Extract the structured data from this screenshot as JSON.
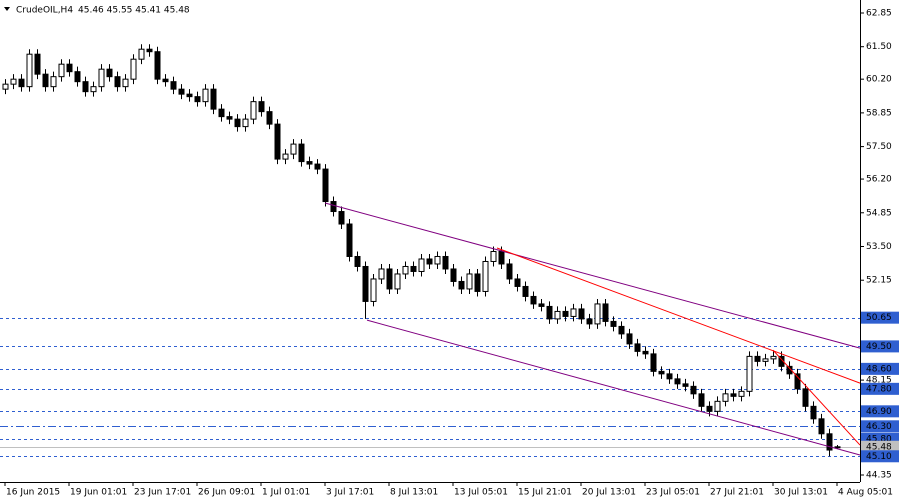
{
  "chart_data": {
    "type": "candlestick",
    "title": "CrudeOIL,H4",
    "subtitle": "45.46 45.55 45.41 45.48",
    "categories": [
      "16 Jun 2015",
      null,
      null,
      null,
      null,
      null,
      null,
      null,
      "19 Jun 01:01",
      null,
      null,
      null,
      null,
      null,
      null,
      null,
      "23 Jun 17:01",
      null,
      null,
      null,
      null,
      null,
      null,
      null,
      "26 Jun 09:01",
      null,
      null,
      null,
      null,
      null,
      null,
      null,
      "1 Jul 01:01",
      null,
      null,
      null,
      null,
      null,
      null,
      null,
      "3 Jul 17:01",
      null,
      null,
      null,
      null,
      null,
      null,
      null,
      "8 Jul 13:01",
      null,
      null,
      null,
      null,
      null,
      null,
      null,
      "13 Jul 05:01",
      null,
      null,
      null,
      null,
      null,
      null,
      null,
      "15 Jul 21:01",
      null,
      null,
      null,
      null,
      null,
      null,
      null,
      "20 Jul 13:01",
      null,
      null,
      null,
      null,
      null,
      null,
      null,
      "23 Jul 05:01",
      null,
      null,
      null,
      null,
      null,
      null,
      null,
      "27 Jul 21:01",
      null,
      null,
      null,
      null,
      null,
      null,
      null,
      "30 Jul 13:01",
      null,
      null,
      null,
      null,
      null,
      null,
      null,
      "4 Aug 05:01"
    ],
    "open": [
      59.8,
      60.0,
      60.2,
      59.9,
      61.2,
      60.4,
      59.9,
      60.3,
      60.8,
      60.5,
      60.1,
      59.7,
      59.9,
      60.6,
      60.3,
      59.9,
      60.2,
      61.0,
      61.4,
      61.3,
      60.2,
      60.1,
      59.8,
      59.6,
      59.5,
      59.3,
      59.8,
      59.0,
      58.7,
      58.6,
      58.3,
      58.6,
      59.3,
      58.9,
      58.4,
      57.0,
      57.2,
      57.6,
      56.9,
      56.8,
      56.6,
      55.3,
      54.9,
      54.4,
      53.1,
      52.7,
      51.3,
      52.2,
      52.6,
      51.8,
      52.4,
      52.7,
      52.5,
      53.0,
      52.8,
      53.1,
      52.6,
      52.1,
      51.8,
      52.4,
      51.7,
      52.9,
      53.3,
      52.8,
      52.2,
      51.9,
      51.5,
      51.2,
      51.1,
      50.6,
      50.9,
      50.7,
      51.0,
      50.6,
      50.4,
      51.2,
      50.5,
      50.3,
      50.0,
      49.6,
      49.3,
      49.2,
      48.5,
      48.4,
      48.2,
      48.0,
      47.9,
      47.6,
      47.1,
      46.9,
      47.3,
      47.6,
      47.5,
      47.7,
      49.1,
      48.9,
      49.0,
      49.1,
      48.7,
      48.4,
      47.8,
      47.1,
      46.6,
      46.0,
      45.46
    ],
    "high": [
      60.2,
      60.4,
      60.4,
      61.4,
      61.4,
      60.6,
      60.5,
      61.0,
      61.0,
      60.7,
      60.3,
      60.1,
      60.8,
      60.8,
      60.5,
      60.4,
      61.2,
      61.6,
      61.6,
      61.5,
      60.4,
      60.3,
      60.0,
      59.8,
      59.7,
      60.0,
      60.0,
      59.2,
      58.9,
      58.8,
      58.8,
      59.5,
      59.5,
      59.1,
      58.6,
      57.4,
      57.8,
      57.8,
      57.1,
      57.0,
      56.8,
      55.5,
      55.1,
      54.6,
      53.3,
      52.9,
      52.4,
      52.8,
      52.8,
      52.6,
      52.9,
      52.9,
      53.2,
      53.2,
      53.3,
      53.3,
      52.8,
      52.3,
      52.6,
      52.6,
      53.1,
      53.5,
      53.5,
      53.0,
      52.4,
      52.1,
      51.7,
      51.4,
      51.3,
      51.1,
      51.1,
      51.2,
      51.2,
      50.8,
      51.4,
      51.4,
      50.7,
      50.5,
      50.2,
      49.8,
      49.5,
      49.4,
      48.7,
      48.6,
      48.4,
      48.2,
      48.1,
      47.8,
      47.3,
      47.5,
      47.8,
      47.8,
      47.9,
      49.3,
      49.3,
      49.2,
      49.3,
      49.3,
      48.9,
      48.6,
      48.0,
      47.3,
      46.8,
      46.2,
      45.55
    ],
    "low": [
      59.6,
      59.8,
      59.7,
      59.7,
      60.2,
      59.7,
      59.7,
      60.1,
      60.3,
      59.9,
      59.5,
      59.5,
      59.7,
      60.1,
      59.7,
      59.7,
      60.0,
      60.8,
      61.1,
      60.0,
      59.9,
      59.6,
      59.4,
      59.3,
      59.1,
      59.1,
      58.8,
      58.5,
      58.4,
      58.1,
      58.1,
      58.4,
      58.7,
      58.2,
      56.8,
      56.8,
      57.0,
      56.7,
      56.6,
      56.4,
      55.1,
      54.7,
      54.2,
      52.9,
      52.5,
      50.6,
      51.1,
      52.0,
      51.6,
      51.6,
      52.2,
      52.3,
      52.3,
      52.6,
      52.6,
      52.4,
      51.9,
      51.6,
      51.6,
      51.5,
      51.5,
      52.7,
      52.6,
      52.0,
      51.7,
      51.3,
      51.0,
      50.9,
      50.4,
      50.4,
      50.5,
      50.5,
      50.4,
      50.2,
      50.2,
      50.3,
      50.1,
      49.8,
      49.4,
      49.1,
      49.0,
      48.3,
      48.2,
      48.0,
      47.8,
      47.7,
      47.4,
      46.9,
      46.7,
      46.7,
      47.1,
      47.3,
      47.3,
      47.5,
      48.7,
      48.7,
      48.8,
      48.5,
      48.2,
      47.6,
      46.9,
      46.4,
      45.8,
      45.1,
      45.41
    ],
    "close": [
      60.0,
      60.2,
      59.9,
      61.2,
      60.4,
      59.9,
      60.3,
      60.8,
      60.5,
      60.1,
      59.7,
      59.9,
      60.6,
      60.3,
      59.9,
      60.2,
      61.0,
      61.4,
      61.3,
      60.2,
      60.1,
      59.8,
      59.6,
      59.5,
      59.3,
      59.8,
      59.0,
      58.7,
      58.6,
      58.3,
      58.6,
      59.3,
      58.9,
      58.4,
      57.0,
      57.2,
      57.6,
      56.9,
      56.8,
      56.6,
      55.3,
      54.9,
      54.4,
      53.1,
      52.7,
      51.3,
      52.2,
      52.6,
      51.8,
      52.4,
      52.7,
      52.5,
      53.0,
      52.8,
      53.1,
      52.6,
      52.1,
      51.8,
      52.4,
      51.7,
      52.9,
      53.3,
      52.8,
      52.2,
      51.9,
      51.5,
      51.2,
      51.1,
      50.6,
      50.9,
      50.7,
      51.0,
      50.6,
      50.4,
      51.2,
      50.5,
      50.3,
      50.0,
      49.6,
      49.3,
      49.2,
      48.5,
      48.4,
      48.2,
      48.0,
      47.9,
      47.6,
      47.1,
      46.9,
      47.3,
      47.6,
      47.5,
      47.7,
      49.1,
      48.9,
      49.0,
      49.1,
      48.7,
      48.4,
      47.8,
      47.1,
      46.6,
      46.0,
      45.35,
      45.48
    ],
    "xlim": [
      -0.625,
      106.875
    ],
    "ylim": [
      44.07,
      63.37
    ],
    "yticks": [
      {
        "value": 62.85,
        "label": "62.85"
      },
      {
        "value": 61.5,
        "label": "61.50"
      },
      {
        "value": 60.2,
        "label": "60.20"
      },
      {
        "value": 58.85,
        "label": "58.85"
      },
      {
        "value": 57.5,
        "label": "57.50"
      },
      {
        "value": 56.2,
        "label": "56.20"
      },
      {
        "value": 54.85,
        "label": "54.85"
      },
      {
        "value": 53.5,
        "label": "53.50"
      },
      {
        "value": 52.15,
        "label": "52.15"
      },
      {
        "value": 48.15,
        "label": "48.15"
      },
      {
        "value": 44.35,
        "label": "44.35"
      }
    ],
    "levels": [
      {
        "value": 50.65,
        "label": "50.65",
        "color": "#2f5fd0",
        "style": "dash"
      },
      {
        "value": 49.5,
        "label": "49.50",
        "color": "#2f5fd0",
        "style": "dash"
      },
      {
        "value": 48.6,
        "label": "48.60",
        "color": "#2f5fd0",
        "style": "dash"
      },
      {
        "value": 47.8,
        "label": "47.80",
        "color": "#2f5fd0",
        "style": "dash"
      },
      {
        "value": 46.9,
        "label": "46.90",
        "color": "#2f5fd0",
        "style": "dash"
      },
      {
        "value": 46.3,
        "label": "46.30",
        "color": "#2f5fd0",
        "style": "dashdot"
      },
      {
        "value": 45.8,
        "label": "45.80",
        "color": "#2f5fd0",
        "style": "dash"
      },
      {
        "value": 45.48,
        "label": "45.48",
        "color": "#c0c0c0",
        "style": "solid"
      },
      {
        "value": 45.1,
        "label": "45.10",
        "color": "#2f5fd0",
        "style": "dash"
      }
    ],
    "trendlines": [
      {
        "color": "#800080",
        "x": [
          40,
          106.875
        ],
        "y": [
          55.24,
          49.43
        ]
      },
      {
        "color": "#800080",
        "x": [
          45.25,
          106.875
        ],
        "y": [
          50.55,
          45.15
        ]
      },
      {
        "color": "#ff0000",
        "x": [
          61.5,
          106.875
        ],
        "y": [
          53.44,
          48.03
        ]
      },
      {
        "color": "#ff0000",
        "x": [
          96,
          106.875
        ],
        "y": [
          49.35,
          45.55
        ]
      }
    ],
    "bull_color": "#ffffff",
    "bear_color": "#000000"
  }
}
